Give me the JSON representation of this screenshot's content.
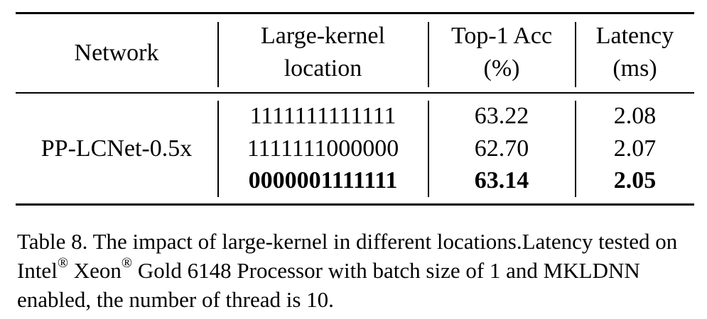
{
  "table": {
    "headers": {
      "network": "Network",
      "location_line1": "Large-kernel",
      "location_line2": "location",
      "acc_line1": "Top-1 Acc",
      "acc_line2": "(%)",
      "latency_line1": "Latency",
      "latency_line2": "(ms)"
    },
    "network_name": "PP-LCNet-0.5x",
    "rows": [
      {
        "location": "1111111111111",
        "acc": "63.22",
        "latency": "2.08",
        "bold": false
      },
      {
        "location": "1111111000000",
        "acc": "62.70",
        "latency": "2.07",
        "bold": false
      },
      {
        "location": "0000001111111",
        "acc": "63.14",
        "latency": "2.05",
        "bold": true
      }
    ]
  },
  "caption": {
    "part1": "Table 8. The impact of large-kernel in different locations.Latency tested on Intel",
    "reg1": "®",
    "part2": " Xeon",
    "reg2": "®",
    "part3": " Gold 6148 Processor with batch size of 1 and MKLDNN enabled, the number of thread is 10."
  }
}
